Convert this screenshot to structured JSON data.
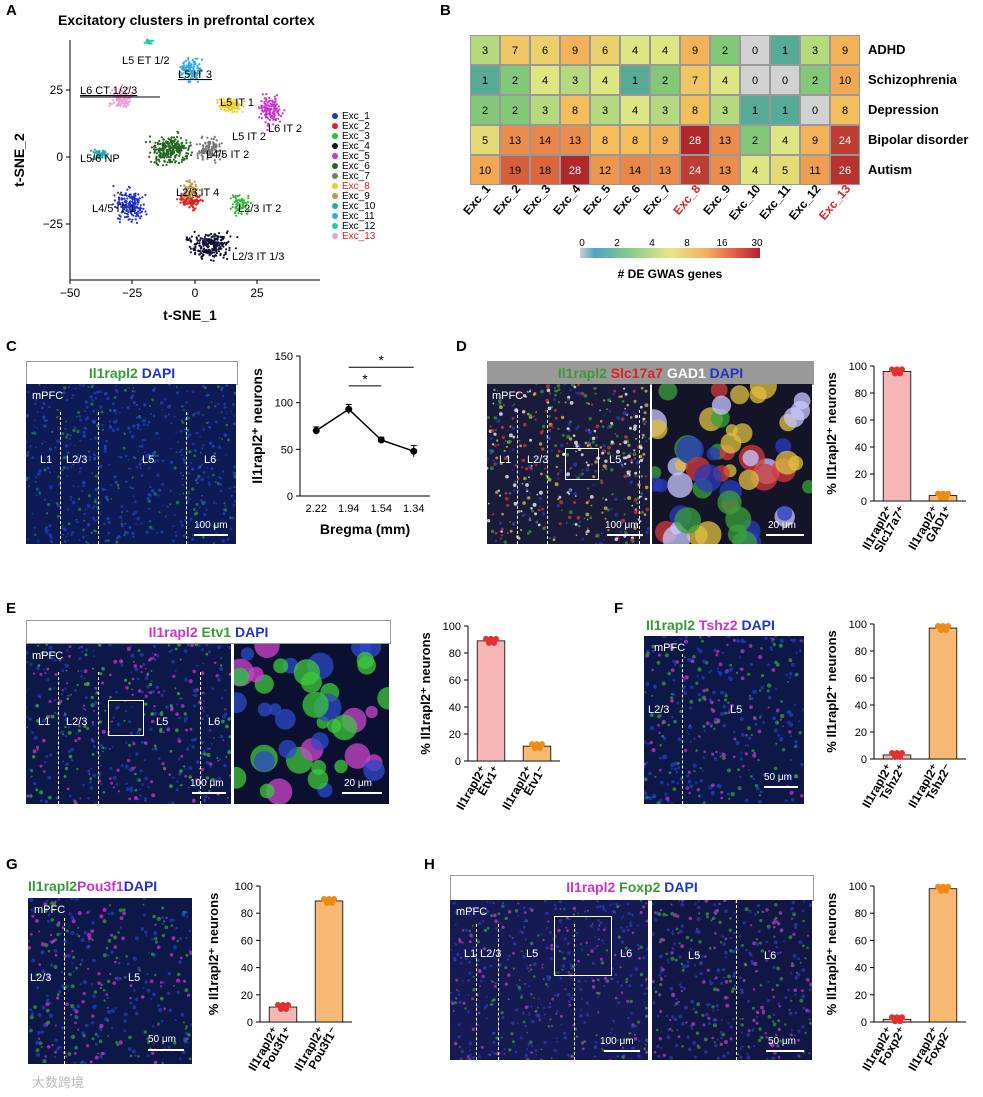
{
  "panels": {
    "A": {
      "letter": "A",
      "title": "Excitatory clusters in prefrontal cortex",
      "ylabel": "t-SNE_2",
      "xlabel": "t-SNE_1",
      "yticks": [
        "25",
        "0",
        "−25"
      ],
      "xticks": [
        "−50",
        "−25",
        "0",
        "25"
      ],
      "cluster_labels": [
        "L5 ET 1/2",
        "L5 IT 3",
        "L6 CT 1/2/3",
        "L5 IT 1",
        "L6 IT 2",
        "L5 IT 2",
        "L4/5 IT 2",
        "L5/6 NP",
        "L2/3 IT 4",
        "L4/5 IT 1",
        "L2/3 IT 2",
        "L2/3 IT 1/3"
      ],
      "legend": [
        {
          "name": "Exc_1",
          "color": "#2233cc",
          "highlight": false
        },
        {
          "name": "Exc_2",
          "color": "#dd2222",
          "highlight": false
        },
        {
          "name": "Exc_3",
          "color": "#33bb33",
          "highlight": false
        },
        {
          "name": "Exc_4",
          "color": "#111133",
          "highlight": false
        },
        {
          "name": "Exc_5",
          "color": "#cc33cc",
          "highlight": false
        },
        {
          "name": "Exc_6",
          "color": "#226622",
          "highlight": false
        },
        {
          "name": "Exc_7",
          "color": "#777777",
          "highlight": false
        },
        {
          "name": "Exc_8",
          "color": "#eecc22",
          "highlight": true
        },
        {
          "name": "Exc_9",
          "color": "#bb9944",
          "highlight": false
        },
        {
          "name": "Exc_10",
          "color": "#22aaaa",
          "highlight": false
        },
        {
          "name": "Exc_11",
          "color": "#33aadd",
          "highlight": false
        },
        {
          "name": "Exc_12",
          "color": "#22ccaa",
          "highlight": false
        },
        {
          "name": "Exc_13",
          "color": "#f0a0d8",
          "highlight": true
        }
      ]
    },
    "B": {
      "letter": "B",
      "rows": [
        "ADHD",
        "Schizophrenia",
        "Depression",
        "Bipolar disorder",
        "Autism"
      ],
      "cols": [
        "Exc_1",
        "Exc_2",
        "Exc_3",
        "Exc_4",
        "Exc_5",
        "Exc_6",
        "Exc_7",
        "Exc_8",
        "Exc_9",
        "Exc_10",
        "Exc_11",
        "Exc_12",
        "Exc_13"
      ],
      "highlight_cols": [
        "Exc_8",
        "Exc_13"
      ],
      "values": [
        [
          3,
          7,
          6,
          9,
          6,
          4,
          4,
          9,
          2,
          0,
          1,
          3,
          9
        ],
        [
          1,
          2,
          4,
          3,
          4,
          1,
          2,
          7,
          4,
          0,
          0,
          2,
          10
        ],
        [
          2,
          2,
          3,
          8,
          3,
          4,
          3,
          8,
          3,
          1,
          1,
          0,
          8
        ],
        [
          5,
          13,
          14,
          13,
          8,
          8,
          9,
          28,
          13,
          2,
          4,
          9,
          24
        ],
        [
          10,
          19,
          18,
          28,
          12,
          14,
          13,
          24,
          13,
          4,
          5,
          11,
          26
        ]
      ],
      "colorbar_ticks": [
        "0",
        "2",
        "4",
        "8",
        "16",
        "30"
      ],
      "colorbar_label": "# DE GWAS genes"
    },
    "C": {
      "letter": "C",
      "header": [
        {
          "t": "Il1rapl2",
          "c": "#3a9a3a"
        },
        {
          "t": " DAPI",
          "c": "#2233cc"
        }
      ],
      "region": "mPFC",
      "layers": [
        "L1",
        "L2/3",
        "L5",
        "L6"
      ],
      "scalebar": "100 μm",
      "chart_data": {
        "type": "line",
        "categories": [
          "2.22",
          "1.94",
          "1.54",
          "1.34"
        ],
        "values": [
          70,
          93,
          60,
          48
        ],
        "errors": [
          4,
          5,
          3,
          6
        ],
        "ylabel": "Il1rapl2⁺ neurons",
        "xlabel": "Bregma (mm)",
        "ylim": [
          0,
          150
        ],
        "yticks": [
          "0",
          "50",
          "100",
          "150"
        ],
        "significance": [
          "*",
          "*"
        ]
      }
    },
    "D": {
      "letter": "D",
      "header": [
        {
          "t": "Il1rapl2",
          "c": "#3a9a3a"
        },
        {
          "t": " Slc17a7",
          "c": "#dd2222"
        },
        {
          "t": " GAD1",
          "c": "#ffffff"
        },
        {
          "t": " DAPI",
          "c": "#2233cc"
        }
      ],
      "region": "mPFC",
      "layers": [
        "L1",
        "L2/3",
        "L5"
      ],
      "scalebar_left": "100 μm",
      "scalebar_right": "20 μm",
      "chart_data": {
        "type": "bar",
        "categories": [
          "Il1rapl2⁺ Slc17a7⁺",
          "Il1rapl2⁺ GAD1⁺"
        ],
        "values": [
          96,
          4
        ],
        "colors": [
          "#f7b6b6",
          "#f7b873"
        ],
        "ylabel": "% Il1rapl2⁺ neurons",
        "ylim": [
          0,
          100
        ],
        "yticks": [
          "0",
          "20",
          "40",
          "60",
          "80",
          "100"
        ]
      }
    },
    "E": {
      "letter": "E",
      "header": [
        {
          "t": "Il1rapl2",
          "c": "#cc33cc"
        },
        {
          "t": " Etv1",
          "c": "#3a9a3a"
        },
        {
          "t": " DAPI",
          "c": "#2233cc"
        }
      ],
      "region": "mPFC",
      "layers": [
        "L1",
        "L2/3",
        "L5",
        "L6"
      ],
      "scalebar_left": "100 μm",
      "scalebar_right": "20 μm",
      "chart_data": {
        "type": "bar",
        "categories": [
          "Il1rapl2⁺ Etv1⁺",
          "Il1rapl2⁺ Etv1⁻"
        ],
        "values": [
          89,
          11
        ],
        "colors": [
          "#f7b6b6",
          "#f7b873"
        ],
        "ylabel": "% Il1rapl2⁺ neurons",
        "ylim": [
          0,
          100
        ],
        "yticks": [
          "0",
          "20",
          "40",
          "60",
          "80",
          "100"
        ]
      }
    },
    "F": {
      "letter": "F",
      "header": [
        {
          "t": "Il1rapl2",
          "c": "#3a9a3a"
        },
        {
          "t": " Tshz2",
          "c": "#cc33cc"
        },
        {
          "t": " DAPI",
          "c": "#2233cc"
        }
      ],
      "region": "mPFC",
      "layers": [
        "L2/3",
        "L5"
      ],
      "scalebar": "50 μm",
      "chart_data": {
        "type": "bar",
        "categories": [
          "Il1rapl2⁺ Tshz2⁺",
          "Il1rapl2⁺ Tshz2⁻"
        ],
        "values": [
          3,
          97
        ],
        "colors": [
          "#f7b6b6",
          "#f7b873"
        ],
        "ylabel": "% Il1rapl2⁺ neurons",
        "ylim": [
          0,
          100
        ],
        "yticks": [
          "0",
          "20",
          "40",
          "60",
          "80",
          "100"
        ]
      }
    },
    "G": {
      "letter": "G",
      "header": [
        {
          "t": "Il1rapl2",
          "c": "#3a9a3a"
        },
        {
          "t": "Pou3f1",
          "c": "#cc33cc"
        },
        {
          "t": "DAPI",
          "c": "#2233cc"
        }
      ],
      "region": "mPFC",
      "layers": [
        "L2/3",
        "L5"
      ],
      "scalebar": "50 μm",
      "chart_data": {
        "type": "bar",
        "categories": [
          "Il1rapl2⁺ Pou3f1⁺",
          "Il1rapl2⁺ Pou3f1⁻"
        ],
        "values": [
          11,
          89
        ],
        "colors": [
          "#f7b6b6",
          "#f7b873"
        ],
        "ylabel": "% Il1rapl2⁺ neurons",
        "ylim": [
          0,
          100
        ],
        "yticks": [
          "0",
          "20",
          "40",
          "60",
          "80",
          "100"
        ]
      }
    },
    "H": {
      "letter": "H",
      "header": [
        {
          "t": "Il1rapl2",
          "c": "#cc33cc"
        },
        {
          "t": " Foxp2",
          "c": "#3a9a3a"
        },
        {
          "t": " DAPI",
          "c": "#2233cc"
        }
      ],
      "region": "mPFC",
      "layers": [
        "L1",
        "L2/3",
        "L5",
        "L6"
      ],
      "right_layers": [
        "L5",
        "L6"
      ],
      "scalebar_left": "100 μm",
      "scalebar_right": "50 μm",
      "chart_data": {
        "type": "bar",
        "categories": [
          "Il1rapl2⁺ Foxp2⁺",
          "Il1rapl2⁺ Foxp2⁻"
        ],
        "values": [
          2,
          98
        ],
        "colors": [
          "#f7b6b6",
          "#f7b873"
        ],
        "ylabel": "% Il1rapl2⁺ neurons",
        "ylim": [
          0,
          100
        ],
        "yticks": [
          "0",
          "20",
          "40",
          "60",
          "80",
          "100"
        ]
      }
    }
  },
  "watermark": "大数跨境"
}
